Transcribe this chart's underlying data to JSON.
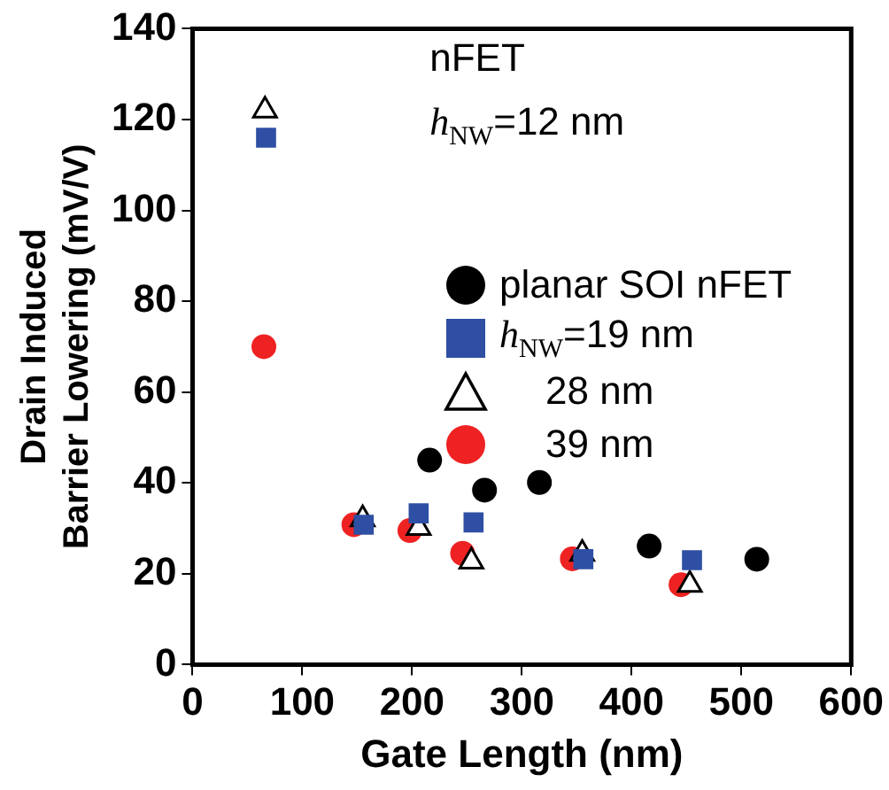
{
  "chart_data": {
    "type": "scatter",
    "xlabel": "Gate Length (nm)",
    "ylabel": "Drain Induced\nBarrier Lowering (mV/V)",
    "xlim": [
      0,
      600
    ],
    "xticks": [
      0,
      100,
      200,
      300,
      400,
      500,
      600
    ],
    "ylim": [
      0,
      140
    ],
    "yticks": [
      0,
      20,
      40,
      60,
      80,
      100,
      120,
      140
    ],
    "grid": false,
    "legend": "right",
    "annotations": [
      "nFET",
      "h$_{NW}$=12 nm"
    ],
    "series": [
      {
        "name": "planar SOI nFET",
        "color": "#000000",
        "marker": "circle",
        "x": [
          216,
          266,
          316,
          416,
          514
        ],
        "values": [
          45,
          38.4,
          40.1,
          26.1,
          23.2
        ]
      },
      {
        "name": "h$_{NW}$=19 nm",
        "color": "#2e4fa3",
        "marker": "square",
        "x": [
          67,
          156,
          206,
          256,
          356,
          455
        ],
        "values": [
          116,
          30.8,
          33.3,
          31.3,
          23.2,
          23
        ]
      },
      {
        "name": "28 nm",
        "color": "#000000",
        "marker": "triangle",
        "x": [
          66,
          155,
          206,
          254,
          355,
          453
        ],
        "values": [
          122,
          32,
          30.1,
          22.7,
          24.4,
          17.6
        ]
      },
      {
        "name": "39 nm",
        "color": "#ee2222",
        "marker": "circle",
        "x": [
          65,
          147,
          198,
          246,
          346,
          445
        ],
        "values": [
          70,
          30.8,
          29.5,
          24.5,
          23.3,
          17.6
        ]
      }
    ]
  }
}
